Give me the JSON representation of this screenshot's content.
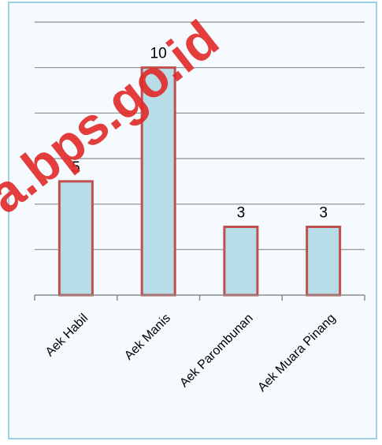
{
  "chart_data": {
    "type": "bar",
    "categories": [
      "Aek Habil",
      "Aek Manis",
      "Aek Parombunan",
      "Aek Muara Pinang"
    ],
    "values": [
      5,
      10,
      3,
      3
    ],
    "ylim": [
      0,
      12
    ],
    "yticks": [
      0,
      2,
      4,
      6,
      8,
      10,
      12
    ],
    "grid": true,
    "bar_fill": "#b7dde8",
    "bar_stroke": "#c0504d",
    "gridline_color": "#8c8c8c"
  },
  "watermark": "a.bps.go.id"
}
